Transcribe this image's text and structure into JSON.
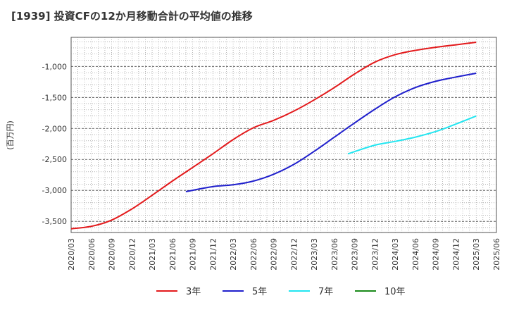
{
  "title": "[1939]  投資CFの12か月移動合計の平均値の推移",
  "chart_data": {
    "type": "line",
    "title": "[1939]  投資CFの12か月移動合計の平均値の推移",
    "xlabel": "",
    "ylabel": "(百万円)",
    "x_ticks": [
      "2020/03",
      "2020/06",
      "2020/09",
      "2020/12",
      "2021/03",
      "2021/06",
      "2021/09",
      "2021/12",
      "2022/03",
      "2022/06",
      "2022/09",
      "2022/12",
      "2023/03",
      "2023/06",
      "2023/09",
      "2023/12",
      "2024/03",
      "2024/06",
      "2024/09",
      "2024/12",
      "2025/03",
      "2025/06"
    ],
    "y_ticks": [
      -1000,
      -1500,
      -2000,
      -2500,
      -3000,
      -3500
    ],
    "y_tick_labels": [
      "-1,000",
      "-1,500",
      "-2,000",
      "-2,500",
      "-3,000",
      "-3,500"
    ],
    "xlim": [
      "2020/03",
      "2025/06"
    ],
    "ylim": [
      -3680,
      -530
    ],
    "grid": true,
    "legend_position": "bottom",
    "series": [
      {
        "name": "3年",
        "color": "#e31a1c",
        "x": [
          "2020/03",
          "2020/06",
          "2020/09",
          "2020/12",
          "2021/03",
          "2021/06",
          "2021/09",
          "2021/12",
          "2022/03",
          "2022/06",
          "2022/09",
          "2022/12",
          "2023/03",
          "2023/06",
          "2023/09",
          "2023/12",
          "2024/03",
          "2024/06",
          "2024/09",
          "2024/12",
          "2025/03"
        ],
        "values": [
          -3620,
          -3580,
          -3480,
          -3300,
          -3080,
          -2850,
          -2630,
          -2410,
          -2180,
          -1990,
          -1870,
          -1720,
          -1540,
          -1340,
          -1120,
          -930,
          -810,
          -740,
          -690,
          -650,
          -610
        ]
      },
      {
        "name": "5年",
        "color": "#1f1fcc",
        "x": [
          "2021/08",
          "2021/12",
          "2022/03",
          "2022/06",
          "2022/09",
          "2022/12",
          "2023/03",
          "2023/06",
          "2023/09",
          "2023/12",
          "2024/03",
          "2024/06",
          "2024/09",
          "2024/12",
          "2025/03"
        ],
        "values": [
          -3020,
          -2940,
          -2910,
          -2850,
          -2740,
          -2580,
          -2370,
          -2140,
          -1910,
          -1690,
          -1490,
          -1340,
          -1240,
          -1170,
          -1110
        ]
      },
      {
        "name": "7年",
        "color": "#22e5f0",
        "x": [
          "2023/08",
          "2023/12",
          "2024/03",
          "2024/06",
          "2024/09",
          "2024/12",
          "2025/03"
        ],
        "values": [
          -2410,
          -2270,
          -2210,
          -2140,
          -2050,
          -1930,
          -1800
        ]
      },
      {
        "name": "10年",
        "color": "#1a8a1a",
        "x": [],
        "values": []
      }
    ]
  }
}
